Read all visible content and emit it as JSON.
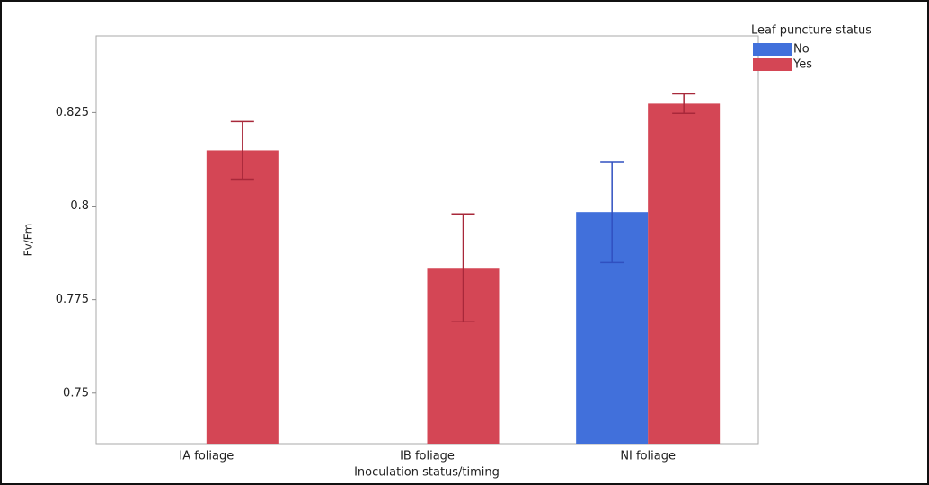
{
  "chart_data": {
    "type": "bar",
    "x_label": "Inoculation status/timing",
    "y_label": "Fv/Fm",
    "legend_title": "Leaf puncture status",
    "legend_position": "right",
    "categories": [
      "IA foliage",
      "IB foliage",
      "NI foliage"
    ],
    "series": [
      {
        "name": "No",
        "color": "#4170db",
        "values": [
          null,
          null,
          0.7984
        ],
        "errors": [
          null,
          null,
          0.0135
        ]
      },
      {
        "name": "Yes",
        "color": "#d44655",
        "values": [
          0.8149,
          0.7835,
          0.8274
        ],
        "errors": [
          0.0077,
          0.0144,
          0.0026
        ]
      }
    ],
    "ylim": [
      0.7365,
      0.8455
    ],
    "yticks": [
      0.75,
      0.775,
      0.8,
      0.825
    ],
    "grid": false
  }
}
